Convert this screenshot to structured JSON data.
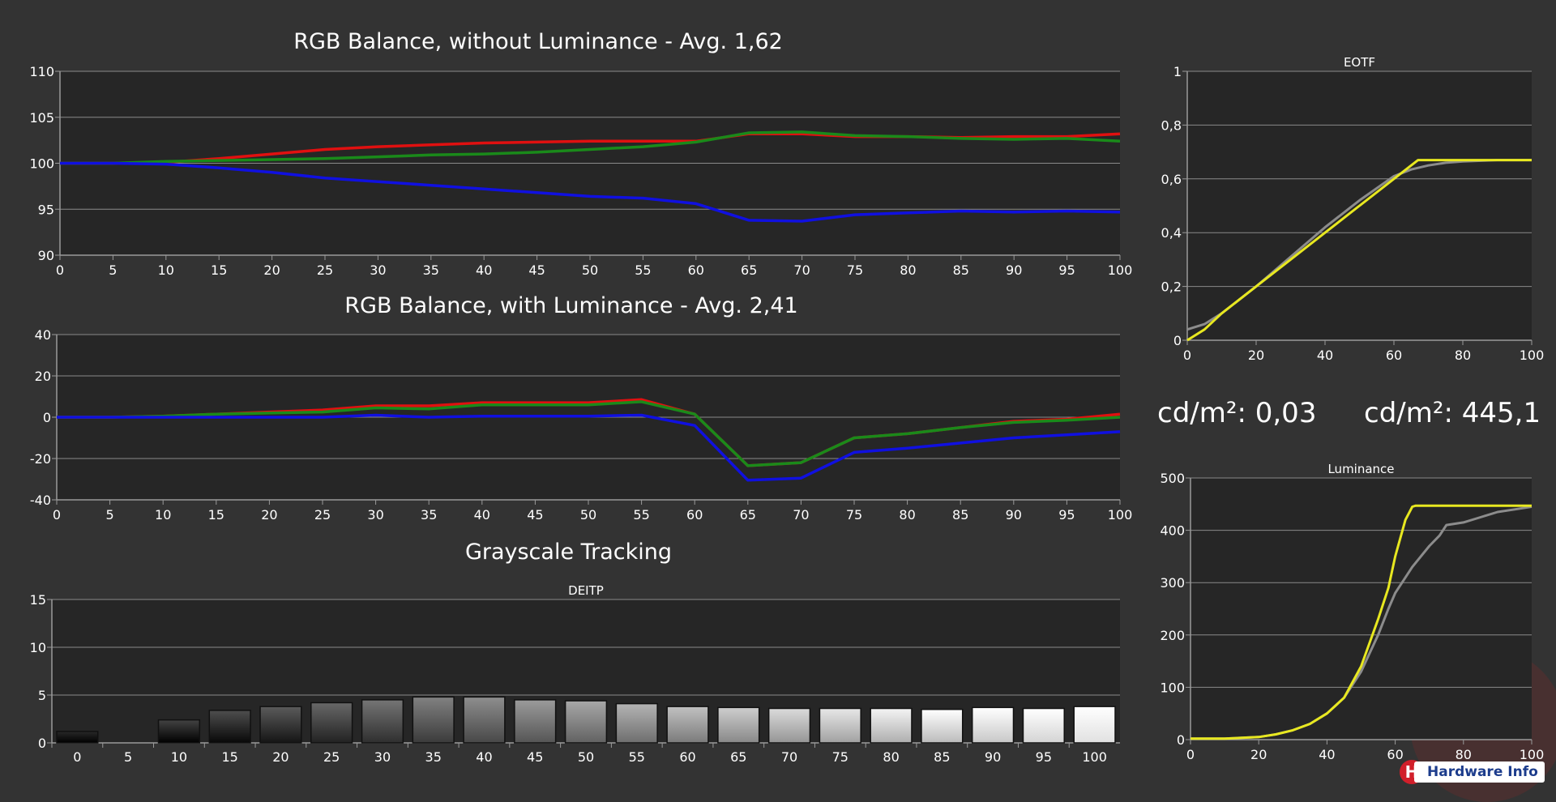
{
  "chart_data": [
    {
      "id": "rgb_no_lum",
      "type": "line",
      "title": "RGB Balance, without Luminance - Avg. 1,62",
      "x": [
        0,
        5,
        10,
        15,
        20,
        25,
        30,
        35,
        40,
        45,
        50,
        55,
        60,
        65,
        70,
        75,
        80,
        85,
        90,
        95,
        100
      ],
      "ylim": [
        90,
        110
      ],
      "yticks": [
        90,
        95,
        100,
        105,
        110
      ],
      "xticks": [
        0,
        5,
        10,
        15,
        20,
        25,
        30,
        35,
        40,
        45,
        50,
        55,
        60,
        65,
        70,
        75,
        80,
        85,
        90,
        95,
        100
      ],
      "series": [
        {
          "color": "#e01010",
          "values": [
            100,
            100,
            100.1,
            100.5,
            101,
            101.5,
            101.8,
            102,
            102.2,
            102.3,
            102.4,
            102.4,
            102.4,
            103.2,
            103.2,
            102.9,
            102.9,
            102.8,
            102.9,
            102.9,
            103.2
          ]
        },
        {
          "color": "#1a8a1a",
          "values": [
            100,
            100,
            100.2,
            100.3,
            100.4,
            100.5,
            100.7,
            100.9,
            101,
            101.2,
            101.5,
            101.8,
            102.3,
            103.3,
            103.4,
            103,
            102.9,
            102.7,
            102.6,
            102.7,
            102.4
          ]
        },
        {
          "color": "#1010e0",
          "values": [
            100,
            100,
            99.9,
            99.5,
            99,
            98.4,
            98,
            97.6,
            97.2,
            96.8,
            96.4,
            96.2,
            95.6,
            93.8,
            93.7,
            94.4,
            94.6,
            94.8,
            94.7,
            94.8,
            94.7
          ]
        }
      ]
    },
    {
      "id": "rgb_lum",
      "type": "line",
      "title": "RGB Balance, with Luminance - Avg. 2,41",
      "x": [
        0,
        5,
        10,
        15,
        20,
        25,
        30,
        35,
        40,
        45,
        50,
        55,
        60,
        65,
        70,
        75,
        80,
        85,
        90,
        95,
        100
      ],
      "ylim": [
        -40,
        40
      ],
      "yticks": [
        -40,
        -20,
        0,
        20,
        40
      ],
      "xticks": [
        0,
        5,
        10,
        15,
        20,
        25,
        30,
        35,
        40,
        45,
        50,
        55,
        60,
        65,
        70,
        75,
        80,
        85,
        90,
        95,
        100
      ],
      "series": [
        {
          "color": "#e01010",
          "values": [
            0,
            0,
            0.5,
            1.5,
            2.5,
            3.5,
            5.5,
            5.5,
            7,
            7,
            7,
            8.5,
            1.5,
            -23.5,
            -22,
            -10,
            -8,
            -5,
            -2,
            -1,
            1.5
          ]
        },
        {
          "color": "#1a8a1a",
          "values": [
            0,
            0,
            0.5,
            1.5,
            2,
            2.5,
            4.5,
            4,
            6,
            6,
            6,
            7.5,
            1.5,
            -23.5,
            -22,
            -10,
            -8,
            -5,
            -2.5,
            -1.5,
            0
          ]
        },
        {
          "color": "#1010e0",
          "values": [
            0,
            0,
            0,
            0,
            0,
            0,
            1,
            0,
            0.5,
            0.5,
            0.5,
            1,
            -4,
            -30.5,
            -29.5,
            -17,
            -15,
            -12.5,
            -10,
            -8.5,
            -7
          ]
        }
      ]
    },
    {
      "id": "grayscale",
      "type": "bar",
      "title": "Grayscale Tracking",
      "subtitle": "DEITP",
      "categories": [
        "0",
        "5",
        "10",
        "15",
        "20",
        "25",
        "30",
        "35",
        "40",
        "45",
        "50",
        "55",
        "60",
        "65",
        "70",
        "75",
        "80",
        "85",
        "90",
        "95",
        "100"
      ],
      "values": [
        1.2,
        0,
        2.4,
        3.4,
        3.8,
        4.2,
        4.5,
        4.8,
        4.8,
        4.5,
        4.4,
        4.1,
        3.8,
        3.7,
        3.6,
        3.6,
        3.6,
        3.5,
        3.7,
        3.6,
        3.8
      ],
      "ylim": [
        0,
        15
      ],
      "yticks": [
        0,
        5,
        10,
        15
      ]
    },
    {
      "id": "eotf",
      "type": "line",
      "title": "EOTF",
      "xlim": [
        0,
        100
      ],
      "ylim": [
        0,
        1
      ],
      "xticks": [
        0,
        20,
        40,
        60,
        80,
        100
      ],
      "yticks": [
        "0",
        "0,2",
        "0,4",
        "0,6",
        "0,8",
        "1"
      ],
      "series": [
        {
          "color": "#e8e820",
          "x": [
            0,
            5,
            10,
            20,
            30,
            40,
            50,
            60,
            67,
            70,
            80,
            90,
            100
          ],
          "values": [
            0,
            0.04,
            0.1,
            0.2,
            0.3,
            0.4,
            0.5,
            0.6,
            0.67,
            0.67,
            0.67,
            0.67,
            0.67
          ]
        },
        {
          "color": "#8c8c8c",
          "x": [
            0,
            5,
            10,
            20,
            30,
            40,
            50,
            60,
            65,
            70,
            75,
            80,
            90,
            100
          ],
          "values": [
            0.04,
            0.06,
            0.1,
            0.2,
            0.31,
            0.42,
            0.52,
            0.61,
            0.635,
            0.65,
            0.66,
            0.665,
            0.67,
            0.67
          ]
        }
      ]
    },
    {
      "id": "luminance",
      "type": "line",
      "title": "Luminance",
      "xlim": [
        0,
        100
      ],
      "ylim": [
        0,
        500
      ],
      "xticks": [
        0,
        20,
        40,
        60,
        80,
        100
      ],
      "yticks": [
        0,
        100,
        200,
        300,
        400,
        500
      ],
      "series": [
        {
          "color": "#e8e820",
          "x": [
            0,
            10,
            20,
            25,
            30,
            35,
            40,
            45,
            50,
            55,
            58,
            60,
            63,
            65,
            66,
            67,
            70,
            80,
            90,
            100
          ],
          "values": [
            2,
            2,
            5,
            10,
            18,
            30,
            50,
            80,
            140,
            230,
            290,
            350,
            420,
            445,
            447,
            447,
            447,
            447,
            447,
            447
          ]
        },
        {
          "color": "#8c8c8c",
          "x": [
            0,
            10,
            20,
            25,
            30,
            35,
            40,
            45,
            50,
            55,
            58,
            60,
            65,
            70,
            73,
            75,
            80,
            85,
            90,
            95,
            100
          ],
          "values": [
            2,
            2,
            5,
            10,
            18,
            30,
            50,
            80,
            130,
            200,
            250,
            280,
            330,
            370,
            390,
            410,
            415,
            425,
            435,
            440,
            445
          ]
        }
      ]
    }
  ],
  "readouts": {
    "black": "cd/m²: 0,03",
    "white": "cd/m²: 445,1"
  },
  "logo": {
    "badge": "H",
    "name": "Hardware Info"
  }
}
